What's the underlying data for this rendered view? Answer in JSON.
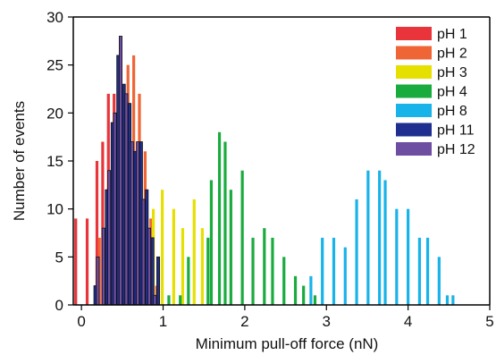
{
  "chart_data": {
    "type": "bar",
    "title": "",
    "xlabel": "Minimum pull-off force (nN)",
    "ylabel": "Number of events",
    "xlim": [
      -0.1,
      5
    ],
    "ylim": [
      0,
      30
    ],
    "x_ticks": [
      0,
      1,
      2,
      3,
      4,
      5
    ],
    "y_ticks": [
      0,
      5,
      10,
      15,
      20,
      25,
      30
    ],
    "bar_width": 0.035,
    "legend_position": "top-right",
    "grid": false,
    "series": [
      {
        "name": "pH 1",
        "color": "#e8343a",
        "x": [
          -0.07,
          0.07,
          0.19,
          0.26,
          0.33,
          0.4,
          0.47,
          0.54,
          0.61,
          0.68,
          0.75
        ],
        "y": [
          9,
          9,
          15,
          17,
          22,
          22,
          20,
          17,
          11,
          7,
          1
        ]
      },
      {
        "name": "pH 2",
        "color": "#ef6535",
        "x": [
          0.22,
          0.29,
          0.36,
          0.43,
          0.5,
          0.57,
          0.64,
          0.71,
          0.78,
          0.85,
          0.92
        ],
        "y": [
          7,
          8,
          13,
          15,
          18,
          25,
          26,
          22,
          16,
          9,
          2
        ]
      },
      {
        "name": "pH 3",
        "color": "#e6e000",
        "x": [
          0.88,
          0.99,
          1.13,
          1.24,
          1.38,
          1.48
        ],
        "y": [
          10,
          12,
          10,
          8,
          11,
          8
        ]
      },
      {
        "name": "pH 4",
        "color": "#1aab3e",
        "x": [
          1.07,
          1.21,
          1.31,
          1.55,
          1.59,
          1.69,
          1.76,
          1.83,
          1.97,
          2.1,
          2.24,
          2.34,
          2.48,
          2.62,
          2.72,
          2.86
        ],
        "y": [
          1,
          1,
          5,
          7,
          13,
          18,
          17,
          12,
          14,
          7,
          8,
          7,
          5,
          3,
          2,
          1
        ]
      },
      {
        "name": "pH 8",
        "color": "#18b3e9",
        "x": [
          2.81,
          2.95,
          3.09,
          3.23,
          3.37,
          3.51,
          3.65,
          3.72,
          3.86,
          4.0,
          4.14,
          4.24,
          4.38,
          4.48,
          4.55
        ],
        "y": [
          3,
          7,
          7,
          6,
          11,
          14,
          14,
          13,
          10,
          10,
          7,
          7,
          5,
          1,
          1
        ]
      },
      {
        "name": "pH 11",
        "color": "#1f2f8f",
        "x": [
          0.0,
          0.17,
          0.31,
          0.38,
          0.45,
          0.52,
          0.59,
          0.66,
          0.73,
          0.8,
          0.87,
          0.94
        ],
        "y": [
          0,
          2,
          12,
          19,
          26,
          23,
          21,
          16,
          17,
          12,
          7,
          5
        ]
      },
      {
        "name": "pH 12",
        "color": "#6e4ea0",
        "x": [
          0.2,
          0.27,
          0.34,
          0.41,
          0.48,
          0.55,
          0.62,
          0.69,
          0.76,
          0.83,
          0.9
        ],
        "y": [
          5,
          8,
          14,
          20,
          28,
          22,
          17,
          17,
          11,
          8,
          1
        ]
      }
    ]
  }
}
